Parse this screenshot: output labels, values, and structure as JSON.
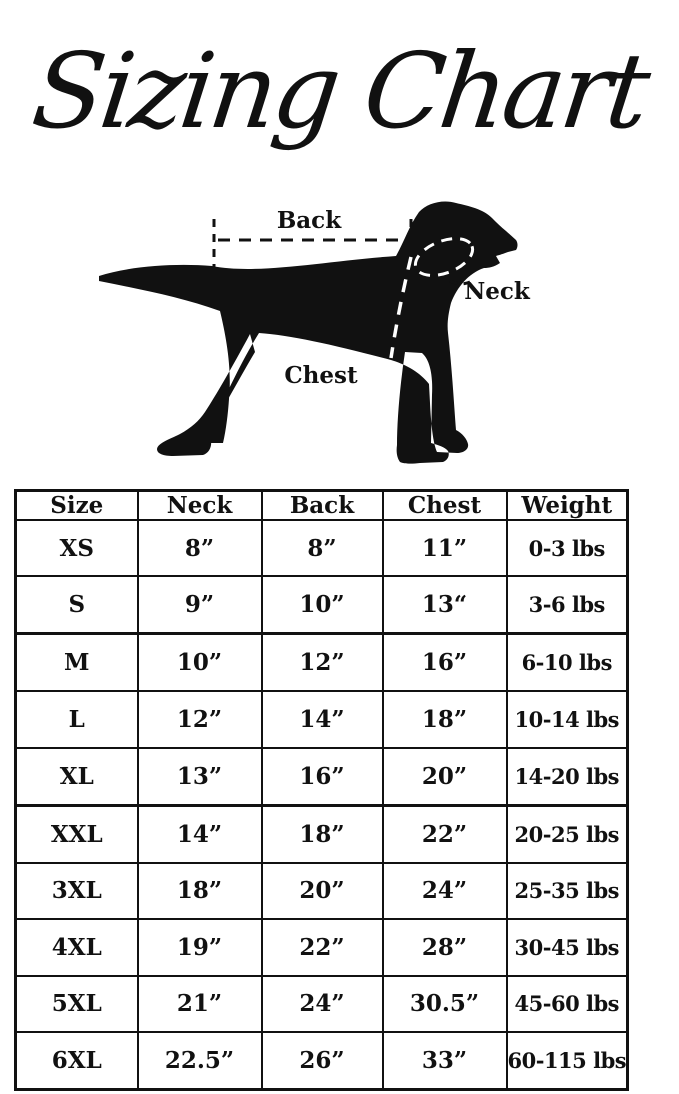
{
  "title": "Sizing Chart",
  "colors": {
    "ink": "#111111",
    "background": "#ffffff"
  },
  "diagram": {
    "back_label": "Back",
    "neck_label": "Neck",
    "chest_label": "Chest"
  },
  "table": {
    "headers": [
      "Size",
      "Neck",
      "Back",
      "Chest",
      "Weight"
    ],
    "rows": [
      [
        "XS",
        "8”",
        "8”",
        "11”",
        "0-3 lbs"
      ],
      [
        "S",
        "9”",
        "10”",
        "13“",
        "3-6 lbs"
      ],
      [
        "M",
        "10”",
        "12”",
        "16”",
        "6-10 lbs"
      ],
      [
        "L",
        "12”",
        "14”",
        "18”",
        "10-14 lbs"
      ],
      [
        "XL",
        "13”",
        "16”",
        "20”",
        "14-20 lbs"
      ],
      [
        "XXL",
        "14”",
        "18”",
        "22”",
        "20-25 lbs"
      ],
      [
        "3XL",
        "18”",
        "20”",
        "24”",
        "25-35 lbs"
      ],
      [
        "4XL",
        "19”",
        "22”",
        "28”",
        "30-45 lbs"
      ],
      [
        "5XL",
        "21”",
        "24”",
        "30.5”",
        "45-60 lbs"
      ],
      [
        "6XL",
        "22.5”",
        "26”",
        "33”",
        "60-115 lbs"
      ]
    ]
  },
  "chart_data": {
    "type": "table",
    "title": "Sizing Chart",
    "columns": [
      "Size",
      "Neck",
      "Back",
      "Chest",
      "Weight"
    ],
    "rows": [
      {
        "size": "XS",
        "neck_in": 8,
        "back_in": 8,
        "chest_in": 11,
        "weight": "0-3 lbs"
      },
      {
        "size": "S",
        "neck_in": 9,
        "back_in": 10,
        "chest_in": 13,
        "weight": "3-6 lbs"
      },
      {
        "size": "M",
        "neck_in": 10,
        "back_in": 12,
        "chest_in": 16,
        "weight": "6-10 lbs"
      },
      {
        "size": "L",
        "neck_in": 12,
        "back_in": 14,
        "chest_in": 18,
        "weight": "10-14 lbs"
      },
      {
        "size": "XL",
        "neck_in": 13,
        "back_in": 16,
        "chest_in": 20,
        "weight": "14-20 lbs"
      },
      {
        "size": "XXL",
        "neck_in": 14,
        "back_in": 18,
        "chest_in": 22,
        "weight": "20-25 lbs"
      },
      {
        "size": "3XL",
        "neck_in": 18,
        "back_in": 20,
        "chest_in": 24,
        "weight": "25-35 lbs"
      },
      {
        "size": "4XL",
        "neck_in": 19,
        "back_in": 22,
        "chest_in": 28,
        "weight": "30-45 lbs"
      },
      {
        "size": "5XL",
        "neck_in": 21,
        "back_in": 24,
        "chest_in": 30.5,
        "weight": "45-60 lbs"
      },
      {
        "size": "6XL",
        "neck_in": 22.5,
        "back_in": 26,
        "chest_in": 33,
        "weight": "60-115 lbs"
      }
    ]
  }
}
